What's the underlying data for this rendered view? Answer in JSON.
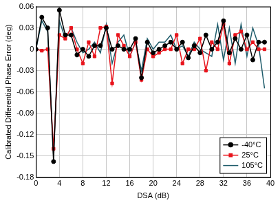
{
  "chart_data": {
    "type": "line",
    "x_label": "DSA (dB)",
    "y_label": "Calibrated Differential Phase Error (deg)",
    "x": [
      0,
      1,
      2,
      3,
      4,
      5,
      6,
      7,
      8,
      9,
      10,
      11,
      12,
      13,
      14,
      15,
      16,
      17,
      18,
      19,
      20,
      21,
      22,
      23,
      24,
      25,
      26,
      27,
      28,
      29,
      30,
      31,
      32,
      33,
      34,
      35,
      36,
      37,
      38,
      39
    ],
    "series": [
      {
        "name": "-40°C",
        "color": "#000000",
        "marker": "circle",
        "line_style": "solid",
        "values": [
          0,
          0.045,
          0.03,
          -0.158,
          0.055,
          0.02,
          0.02,
          -0.008,
          0,
          -0.01,
          0.005,
          0.005,
          0.03,
          0,
          0.005,
          0,
          0,
          0.015,
          -0.04,
          0.01,
          -0.005,
          0,
          0.005,
          0.01,
          0,
          0.01,
          -0.012,
          0.005,
          -0.005,
          0.02,
          0,
          0.01,
          0.04,
          -0.005,
          0.015,
          0,
          0.02,
          -0.015,
          0.01,
          0.01
        ]
      },
      {
        "name": "25°C",
        "color": "#e8141c",
        "marker": "square",
        "line_style": "solid",
        "values": [
          0,
          -0.002,
          0,
          -0.14,
          0.02,
          0.015,
          0.03,
          0,
          -0.02,
          0.01,
          -0.01,
          0.03,
          0.032,
          -0.048,
          0.02,
          0.005,
          -0.01,
          0.01,
          -0.043,
          0,
          -0.01,
          -0.005,
          0,
          0,
          0.02,
          -0.02,
          0,
          0,
          0.015,
          -0.03,
          0.01,
          0,
          0.035,
          -0.02,
          0.02,
          0.025,
          0,
          0.01,
          0,
          0
        ]
      },
      {
        "name": "105°C",
        "color": "#1f5c6b",
        "marker": "none",
        "line_style": "solid",
        "values": [
          0,
          0.04,
          0.025,
          -0.15,
          0.04,
          0.015,
          0.03,
          0.01,
          -0.005,
          0,
          0.01,
          -0.005,
          0.035,
          -0.02,
          0.01,
          0.02,
          -0.01,
          0.01,
          -0.03,
          0.015,
          0,
          0.01,
          0.01,
          0.02,
          0,
          0.005,
          -0.01,
          0.01,
          0,
          -0.005,
          -0.01,
          0.035,
          -0.015,
          0.03,
          -0.02,
          0.035,
          -0.01,
          0.03,
          0.005,
          -0.055
        ]
      }
    ],
    "xlim": [
      0,
      40
    ],
    "xticks": [
      0,
      4,
      8,
      12,
      16,
      20,
      24,
      28,
      32,
      36,
      40
    ],
    "ylim": [
      -0.18,
      0.06
    ],
    "yticks": [
      -0.18,
      -0.15,
      -0.12,
      -0.09,
      -0.06,
      -0.03,
      0,
      0.03,
      0.06
    ],
    "grid": true,
    "legend": "lower right"
  }
}
